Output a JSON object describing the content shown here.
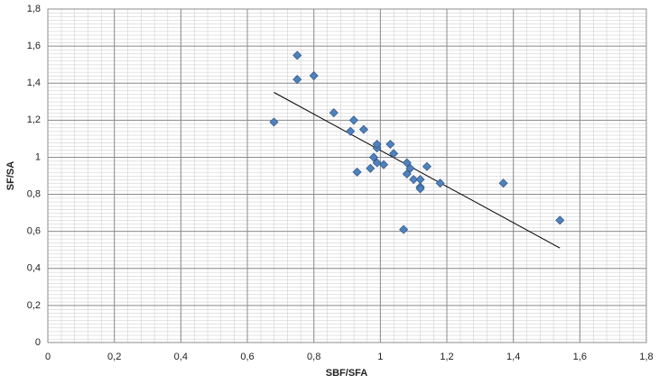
{
  "chart_data": {
    "type": "scatter",
    "x_label": "SBF/SFA",
    "y_label": "SF/SA",
    "x": [
      0.68,
      0.75,
      0.75,
      0.8,
      0.86,
      0.92,
      0.91,
      0.95,
      1.03,
      0.99,
      0.99,
      1.04,
      0.98,
      1.08,
      1.01,
      0.99,
      0.97,
      0.93,
      1.09,
      1.14,
      1.08,
      1.1,
      1.12,
      1.12,
      1.12,
      1.18,
      1.37,
      1.07,
      1.54
    ],
    "values": [
      1.19,
      1.55,
      1.42,
      1.44,
      1.24,
      1.2,
      1.14,
      1.15,
      1.07,
      1.05,
      1.07,
      1.02,
      1.0,
      0.97,
      0.96,
      0.97,
      0.94,
      0.92,
      0.94,
      0.95,
      0.91,
      0.88,
      0.88,
      0.84,
      0.83,
      0.86,
      0.86,
      0.61,
      0.66
    ],
    "color": "#4f81bd",
    "trendline": {
      "x": [
        0.68,
        1.54
      ],
      "y": [
        1.35,
        0.51
      ],
      "color": "#000000"
    },
    "xlim": [
      0,
      1.8
    ],
    "xticks": [
      0,
      {
        "value": 0.2,
        "label": "0,2"
      },
      {
        "value": 0.4,
        "label": "0,4"
      },
      {
        "value": 0.6,
        "label": "0,6"
      },
      {
        "value": 0.8,
        "label": "0,8"
      },
      1,
      {
        "value": 1.2,
        "label": "1,2"
      },
      {
        "value": 1.4,
        "label": "1,4"
      },
      {
        "value": 1.6,
        "label": "1,6"
      },
      {
        "value": 1.8,
        "label": "1,8"
      }
    ],
    "ylim": [
      0,
      1.8
    ],
    "yticks": [
      0,
      {
        "value": 0.2,
        "label": "0,2"
      },
      {
        "value": 0.4,
        "label": "0,4"
      },
      {
        "value": 0.6,
        "label": "0,6"
      },
      {
        "value": 0.8,
        "label": "0,8"
      },
      1,
      {
        "value": 1.2,
        "label": "1,2"
      },
      {
        "value": 1.4,
        "label": "1,4"
      },
      {
        "value": 1.6,
        "label": "1,6"
      },
      {
        "value": 1.8,
        "label": "1,8"
      }
    ],
    "grid": true
  }
}
